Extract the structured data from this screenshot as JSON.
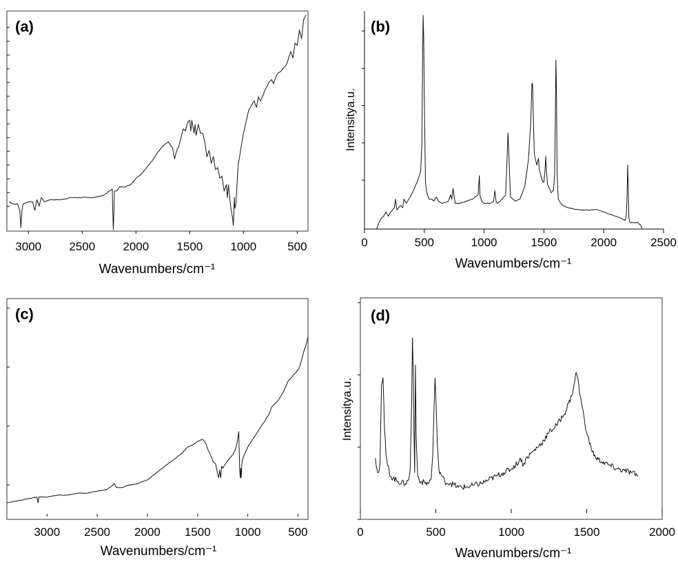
{
  "chart_data": [
    {
      "panel": "(a)",
      "type": "line",
      "xlabel": "Wavenumbers/cm⁻¹",
      "ylabel": "",
      "xlim": [
        3200,
        400
      ],
      "x_reversed": true,
      "xticks": [
        3000,
        2500,
        2000,
        1500,
        1000,
        500
      ],
      "ylim": [
        0,
        100
      ],
      "series": [
        {
          "x": [
            3180,
            3140,
            3100,
            3080,
            3070,
            3060,
            3050,
            3000,
            2960,
            2940,
            2920,
            2900,
            2880,
            2850,
            2800,
            2700,
            2600,
            2500,
            2400,
            2300,
            2250,
            2220,
            2215,
            2210,
            2205,
            2200,
            2190,
            2180,
            2150,
            2100,
            2050,
            2000,
            1950,
            1900,
            1850,
            1800,
            1750,
            1700,
            1660,
            1640,
            1620,
            1600,
            1580,
            1560,
            1540,
            1520,
            1500,
            1490,
            1480,
            1470,
            1460,
            1450,
            1440,
            1420,
            1400,
            1380,
            1360,
            1340,
            1320,
            1300,
            1280,
            1260,
            1240,
            1220,
            1200,
            1180,
            1160,
            1150,
            1140,
            1120,
            1100,
            1095,
            1090,
            1085,
            1080,
            1070,
            1050,
            1000,
            950,
            900,
            880,
            860,
            840,
            800,
            760,
            740,
            720,
            700,
            680,
            650,
            600,
            560,
            540,
            520,
            500,
            480,
            460,
            440,
            420
          ],
          "y": [
            13,
            12,
            12,
            9,
            1,
            9,
            12,
            13,
            13,
            9,
            14,
            11,
            15,
            13,
            14,
            14,
            15,
            15,
            15,
            16,
            18,
            19,
            8,
            0,
            8,
            18,
            18,
            18,
            20,
            20,
            21,
            24,
            26,
            29,
            32,
            36,
            39,
            41,
            38,
            33,
            37,
            39,
            43,
            47,
            46,
            50,
            51,
            46,
            51,
            48,
            45,
            49,
            44,
            49,
            45,
            45,
            41,
            34,
            37,
            31,
            34,
            28,
            29,
            24,
            25,
            18,
            21,
            15,
            21,
            11,
            5,
            2,
            7,
            15,
            10,
            12,
            30,
            45,
            56,
            60,
            57,
            62,
            60,
            65,
            69,
            70,
            68,
            71,
            73,
            74,
            77,
            83,
            80,
            87,
            86,
            93,
            89,
            98,
            100
          ]
        }
      ]
    },
    {
      "panel": "(b)",
      "type": "line",
      "xlabel": "Wavenumbers/cm⁻¹",
      "ylabel": "Intensitya.u.",
      "xlim": [
        0,
        2500
      ],
      "xticks": [
        0,
        500,
        1000,
        1500,
        2000,
        2500
      ],
      "ylim": [
        0,
        100
      ],
      "series": [
        {
          "x": [
            100,
            120,
            140,
            160,
            180,
            200,
            220,
            250,
            260,
            270,
            300,
            320,
            330,
            350,
            400,
            440,
            470,
            480,
            485,
            490,
            495,
            500,
            505,
            510,
            520,
            540,
            560,
            580,
            600,
            620,
            650,
            700,
            720,
            730,
            740,
            750,
            760,
            800,
            850,
            900,
            950,
            960,
            965,
            970,
            980,
            1000,
            1050,
            1080,
            1090,
            1100,
            1110,
            1150,
            1180,
            1190,
            1200,
            1210,
            1220,
            1260,
            1300,
            1340,
            1370,
            1390,
            1400,
            1405,
            1410,
            1420,
            1440,
            1455,
            1460,
            1470,
            1480,
            1490,
            1500,
            1510,
            1515,
            1520,
            1530,
            1560,
            1580,
            1590,
            1595,
            1600,
            1605,
            1610,
            1620,
            1640,
            1660,
            1700,
            1800,
            1900,
            1950,
            2000,
            2050,
            2100,
            2150,
            2180,
            2190,
            2195,
            2200,
            2205,
            2210,
            2220,
            2250,
            2290,
            2300,
            2310,
            2320
          ],
          "y": [
            0,
            3,
            5,
            6,
            8,
            6,
            8,
            10,
            14,
            9,
            11,
            10,
            14,
            12,
            17,
            22,
            27,
            40,
            75,
            100,
            90,
            62,
            40,
            22,
            17,
            14,
            14,
            13,
            15,
            13,
            12,
            13,
            16,
            14,
            19,
            15,
            12,
            12,
            13,
            14,
            16,
            25,
            16,
            15,
            13,
            12,
            12,
            13,
            18,
            13,
            12,
            14,
            16,
            30,
            45,
            30,
            15,
            13,
            14,
            20,
            32,
            50,
            68,
            68,
            55,
            35,
            30,
            33,
            28,
            26,
            24,
            22,
            22,
            28,
            34,
            28,
            21,
            17,
            18,
            26,
            50,
            79,
            65,
            26,
            14,
            12,
            11,
            10,
            9,
            9,
            9,
            8,
            7,
            6,
            5,
            4,
            7,
            16,
            30,
            20,
            5,
            3,
            3,
            3,
            2,
            2,
            0
          ]
        }
      ]
    },
    {
      "panel": "(c)",
      "type": "line",
      "xlabel": "Wavenumbers/cm⁻¹",
      "ylabel": "",
      "xlim": [
        3400,
        400
      ],
      "x_reversed": true,
      "xticks": [
        3000,
        2500,
        2000,
        1500,
        1000,
        500
      ],
      "ylim": [
        0,
        100
      ],
      "series": [
        {
          "x": [
            3400,
            3300,
            3200,
            3100,
            3090,
            3080,
            3000,
            2900,
            2800,
            2700,
            2600,
            2500,
            2400,
            2350,
            2330,
            2310,
            2250,
            2200,
            2100,
            2000,
            1950,
            1900,
            1850,
            1800,
            1750,
            1700,
            1650,
            1600,
            1550,
            1500,
            1450,
            1420,
            1400,
            1380,
            1350,
            1320,
            1300,
            1290,
            1280,
            1270,
            1260,
            1250,
            1200,
            1150,
            1120,
            1100,
            1090,
            1080,
            1075,
            1070,
            1065,
            1060,
            1050,
            1000,
            950,
            900,
            850,
            800,
            780,
            760,
            700,
            650,
            600,
            550,
            500,
            480,
            460,
            440,
            420,
            400
          ],
          "y": [
            5,
            6,
            7,
            8,
            5,
            8,
            8,
            9,
            9,
            10,
            10,
            11,
            12,
            14,
            15,
            13,
            13,
            14,
            15,
            17,
            19,
            21,
            23,
            25,
            27,
            29,
            31,
            34,
            35,
            37,
            38,
            36,
            33,
            31,
            27,
            25,
            20,
            18,
            22,
            18,
            24,
            23,
            27,
            30,
            33,
            38,
            42,
            22,
            18,
            23,
            18,
            25,
            28,
            34,
            38,
            42,
            46,
            50,
            52,
            55,
            58,
            62,
            68,
            71,
            74,
            76,
            80,
            84,
            87,
            91
          ]
        }
      ]
    },
    {
      "panel": "(d)",
      "type": "line",
      "xlabel": "Wavenumbers/cm⁻¹",
      "ylabel": "Intensitya.u.",
      "xlim": [
        0,
        2000
      ],
      "xticks": [
        0,
        500,
        1000,
        1500,
        2000
      ],
      "ylim": [
        0,
        100
      ],
      "series": [
        {
          "x": [
            100,
            110,
            120,
            130,
            140,
            150,
            160,
            170,
            180,
            200,
            250,
            300,
            320,
            330,
            340,
            345,
            350,
            355,
            360,
            365,
            370,
            380,
            400,
            450,
            470,
            480,
            490,
            495,
            500,
            510,
            520,
            540,
            560,
            600,
            650,
            700,
            750,
            800,
            850,
            900,
            950,
            1000,
            1050,
            1060,
            1080,
            1100,
            1150,
            1200,
            1250,
            1300,
            1350,
            1380,
            1400,
            1420,
            1430,
            1440,
            1450,
            1470,
            1500,
            1530,
            1560,
            1600,
            1650,
            1700,
            1750,
            1800,
            1840
          ],
          "y": [
            28,
            22,
            20,
            25,
            68,
            72,
            45,
            30,
            24,
            18,
            15,
            14,
            16,
            22,
            60,
            94,
            78,
            45,
            20,
            79,
            40,
            18,
            15,
            14,
            17,
            30,
            60,
            72,
            62,
            35,
            22,
            18,
            15,
            14,
            12,
            12,
            13,
            14,
            16,
            18,
            20,
            22,
            26,
            28,
            24,
            28,
            32,
            36,
            42,
            46,
            52,
            58,
            62,
            70,
            75,
            72,
            66,
            56,
            42,
            33,
            28,
            26,
            24,
            22,
            21,
            20,
            18
          ]
        }
      ]
    }
  ],
  "panels": {
    "a": {
      "label": "(a)",
      "xlabel": "Wavenumbers/cm⁻¹"
    },
    "b": {
      "label": "(b)",
      "xlabel": "Wavenumbers/cm⁻¹",
      "ylabel": "Intensitya.u."
    },
    "c": {
      "label": "(c)",
      "xlabel": "Wavenumbers/cm⁻¹"
    },
    "d": {
      "label": "(d)",
      "xlabel": "Wavenumbers/cm⁻¹",
      "ylabel": "Intensitya.u."
    }
  }
}
